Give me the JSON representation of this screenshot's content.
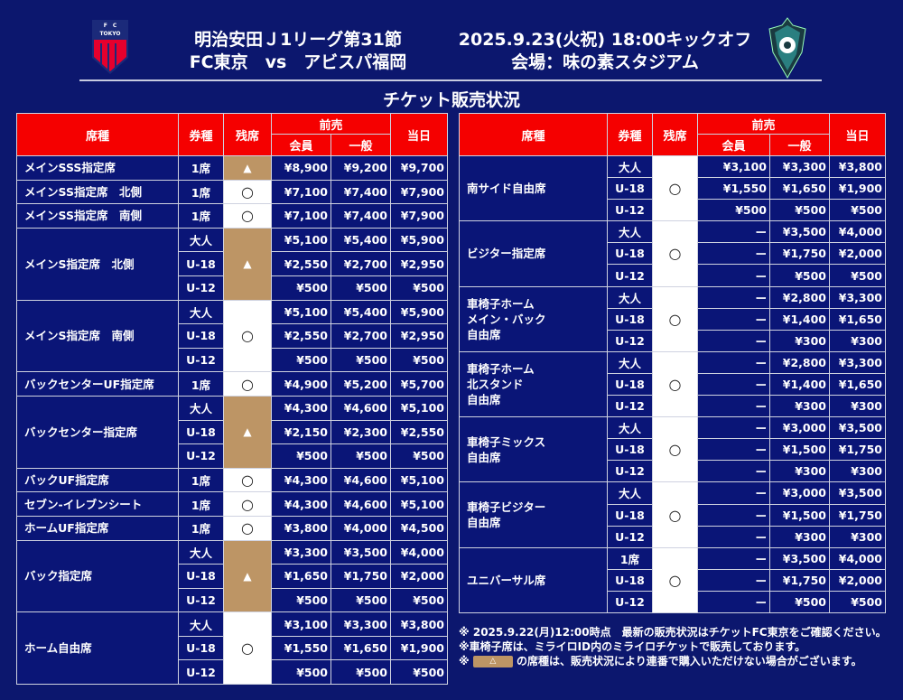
{
  "header": {
    "line1": "明治安田Ｊ1リーグ第31節",
    "line2": "FC東京　vs　アビスパ福岡",
    "date": "2025.9.23(火祝) 18:00キックオフ",
    "venue": "会場：味の素スタジアム",
    "home_logo_text": "F C TOKYO",
    "title": "チケット販売状況"
  },
  "colors": {
    "header_red": "#f50000",
    "limited": "#bd9565",
    "background": "#0c176e"
  },
  "columns": {
    "seat": "席種",
    "ticket": "券種",
    "remaining": "残席",
    "advance": "前売",
    "member": "会員",
    "general": "一般",
    "day": "当日"
  },
  "status_symbols": {
    "available": "○",
    "limited": "▲"
  },
  "left_table": [
    {
      "seat": "メインSSS指定席",
      "status": "limited",
      "rows": [
        [
          "1席",
          "¥8,900",
          "¥9,200",
          "¥9,700"
        ]
      ]
    },
    {
      "seat": "メインSS指定席　北側",
      "status": "available",
      "rows": [
        [
          "1席",
          "¥7,100",
          "¥7,400",
          "¥7,900"
        ]
      ]
    },
    {
      "seat": "メインSS指定席　南側",
      "status": "available",
      "rows": [
        [
          "1席",
          "¥7,100",
          "¥7,400",
          "¥7,900"
        ]
      ]
    },
    {
      "seat": "メインS指定席　北側",
      "status": "limited",
      "rows": [
        [
          "大人",
          "¥5,100",
          "¥5,400",
          "¥5,900"
        ],
        [
          "U-18",
          "¥2,550",
          "¥2,700",
          "¥2,950"
        ],
        [
          "U-12",
          "¥500",
          "¥500",
          "¥500"
        ]
      ]
    },
    {
      "seat": "メインS指定席　南側",
      "status": "available",
      "rows": [
        [
          "大人",
          "¥5,100",
          "¥5,400",
          "¥5,900"
        ],
        [
          "U-18",
          "¥2,550",
          "¥2,700",
          "¥2,950"
        ],
        [
          "U-12",
          "¥500",
          "¥500",
          "¥500"
        ]
      ]
    },
    {
      "seat": "バックセンターUF指定席",
      "status": "available",
      "rows": [
        [
          "1席",
          "¥4,900",
          "¥5,200",
          "¥5,700"
        ]
      ]
    },
    {
      "seat": "バックセンター指定席",
      "status": "limited",
      "rows": [
        [
          "大人",
          "¥4,300",
          "¥4,600",
          "¥5,100"
        ],
        [
          "U-18",
          "¥2,150",
          "¥2,300",
          "¥2,550"
        ],
        [
          "U-12",
          "¥500",
          "¥500",
          "¥500"
        ]
      ]
    },
    {
      "seat": "バックUF指定席",
      "status": "available",
      "rows": [
        [
          "1席",
          "¥4,300",
          "¥4,600",
          "¥5,100"
        ]
      ]
    },
    {
      "seat": "セブン-イレブンシート",
      "status": "available",
      "rows": [
        [
          "1席",
          "¥4,300",
          "¥4,600",
          "¥5,100"
        ]
      ]
    },
    {
      "seat": "ホームUF指定席",
      "status": "available",
      "rows": [
        [
          "1席",
          "¥3,800",
          "¥4,000",
          "¥4,500"
        ]
      ]
    },
    {
      "seat": "バック指定席",
      "status": "limited",
      "rows": [
        [
          "大人",
          "¥3,300",
          "¥3,500",
          "¥4,000"
        ],
        [
          "U-18",
          "¥1,650",
          "¥1,750",
          "¥2,000"
        ],
        [
          "U-12",
          "¥500",
          "¥500",
          "¥500"
        ]
      ]
    },
    {
      "seat": "ホーム自由席",
      "status": "available",
      "rows": [
        [
          "大人",
          "¥3,100",
          "¥3,300",
          "¥3,800"
        ],
        [
          "U-18",
          "¥1,550",
          "¥1,650",
          "¥1,900"
        ],
        [
          "U-12",
          "¥500",
          "¥500",
          "¥500"
        ]
      ]
    }
  ],
  "right_table": [
    {
      "seat": "南サイド自由席",
      "status": "available",
      "rows": [
        [
          "大人",
          "¥3,100",
          "¥3,300",
          "¥3,800"
        ],
        [
          "U-18",
          "¥1,550",
          "¥1,650",
          "¥1,900"
        ],
        [
          "U-12",
          "¥500",
          "¥500",
          "¥500"
        ]
      ]
    },
    {
      "seat": "ビジター指定席",
      "status": "available",
      "rows": [
        [
          "大人",
          "ー",
          "¥3,500",
          "¥4,000"
        ],
        [
          "U-18",
          "ー",
          "¥1,750",
          "¥2,000"
        ],
        [
          "U-12",
          "ー",
          "¥500",
          "¥500"
        ]
      ]
    },
    {
      "seat": "車椅子ホーム\nメイン・バック\n自由席",
      "status": "available",
      "rows": [
        [
          "大人",
          "ー",
          "¥2,800",
          "¥3,300"
        ],
        [
          "U-18",
          "ー",
          "¥1,400",
          "¥1,650"
        ],
        [
          "U-12",
          "ー",
          "¥300",
          "¥300"
        ]
      ]
    },
    {
      "seat": "車椅子ホーム\n北スタンド\n自由席",
      "status": "available",
      "rows": [
        [
          "大人",
          "ー",
          "¥2,800",
          "¥3,300"
        ],
        [
          "U-18",
          "ー",
          "¥1,400",
          "¥1,650"
        ],
        [
          "U-12",
          "ー",
          "¥300",
          "¥300"
        ]
      ]
    },
    {
      "seat": "車椅子ミックス\n自由席",
      "status": "available",
      "rows": [
        [
          "大人",
          "ー",
          "¥3,000",
          "¥3,500"
        ],
        [
          "U-18",
          "ー",
          "¥1,500",
          "¥1,750"
        ],
        [
          "U-12",
          "ー",
          "¥300",
          "¥300"
        ]
      ]
    },
    {
      "seat": "車椅子ビジター\n自由席",
      "status": "available",
      "rows": [
        [
          "大人",
          "ー",
          "¥3,000",
          "¥3,500"
        ],
        [
          "U-18",
          "ー",
          "¥1,500",
          "¥1,750"
        ],
        [
          "U-12",
          "ー",
          "¥300",
          "¥300"
        ]
      ]
    },
    {
      "seat": "ユニバーサル席",
      "status": "available",
      "rows": [
        [
          "1席",
          "ー",
          "¥3,500",
          "¥4,000"
        ],
        [
          "U-18",
          "ー",
          "¥1,750",
          "¥2,000"
        ],
        [
          "U-12",
          "ー",
          "¥500",
          "¥500"
        ]
      ]
    }
  ],
  "notes": {
    "n1": "※ 2025.9.22(月)12:00時点　最新の販売状況はチケットFC東京をご確認ください。",
    "n2": "※車椅子席は、ミライロID内のミライロチケットで販売しております。",
    "n3_prefix": "※",
    "n3_chip": "△",
    "n3_text": "の席種は、販売状況により連番で購入いただけない場合がございます。"
  }
}
